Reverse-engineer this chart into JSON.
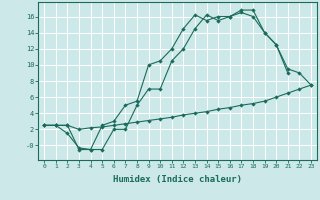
{
  "xlabel": "Humidex (Indice chaleur)",
  "bg_color": "#cce8e8",
  "grid_color": "#ffffff",
  "line_color": "#1a6b5a",
  "xlim": [
    -0.5,
    23.5
  ],
  "ylim": [
    -1.8,
    17.8
  ],
  "line1_x": [
    0,
    1,
    2,
    3,
    4,
    5,
    6,
    7,
    8,
    9,
    10,
    11,
    12,
    13,
    14,
    15,
    16,
    17,
    18,
    19,
    20,
    21
  ],
  "line1_y": [
    2.5,
    2.5,
    2.5,
    -0.5,
    -0.5,
    -0.5,
    2.0,
    2.0,
    5.0,
    7.0,
    7.0,
    10.5,
    12.0,
    14.5,
    16.2,
    15.5,
    16.0,
    16.8,
    16.8,
    14.0,
    12.5,
    9.0
  ],
  "line2_x": [
    0,
    1,
    2,
    3,
    4,
    5,
    6,
    7,
    8,
    9,
    10,
    11,
    12,
    13,
    14,
    15,
    16,
    17,
    18,
    19,
    20,
    21,
    22,
    23
  ],
  "line2_y": [
    2.5,
    2.5,
    1.5,
    -0.3,
    -0.5,
    2.5,
    3.0,
    5.0,
    5.5,
    10.0,
    10.5,
    12.0,
    14.5,
    16.2,
    15.5,
    16.0,
    16.0,
    16.5,
    16.0,
    14.0,
    12.5,
    9.5,
    9.0,
    7.5
  ],
  "line3_x": [
    0,
    1,
    2,
    3,
    4,
    5,
    6,
    7,
    8,
    9,
    10,
    11,
    12,
    13,
    14,
    15,
    16,
    17,
    18,
    19,
    20,
    21,
    22,
    23
  ],
  "line3_y": [
    2.5,
    2.5,
    2.5,
    2.0,
    2.2,
    2.3,
    2.5,
    2.7,
    2.9,
    3.1,
    3.3,
    3.5,
    3.8,
    4.0,
    4.2,
    4.5,
    4.7,
    5.0,
    5.2,
    5.5,
    6.0,
    6.5,
    7.0,
    7.5
  ]
}
